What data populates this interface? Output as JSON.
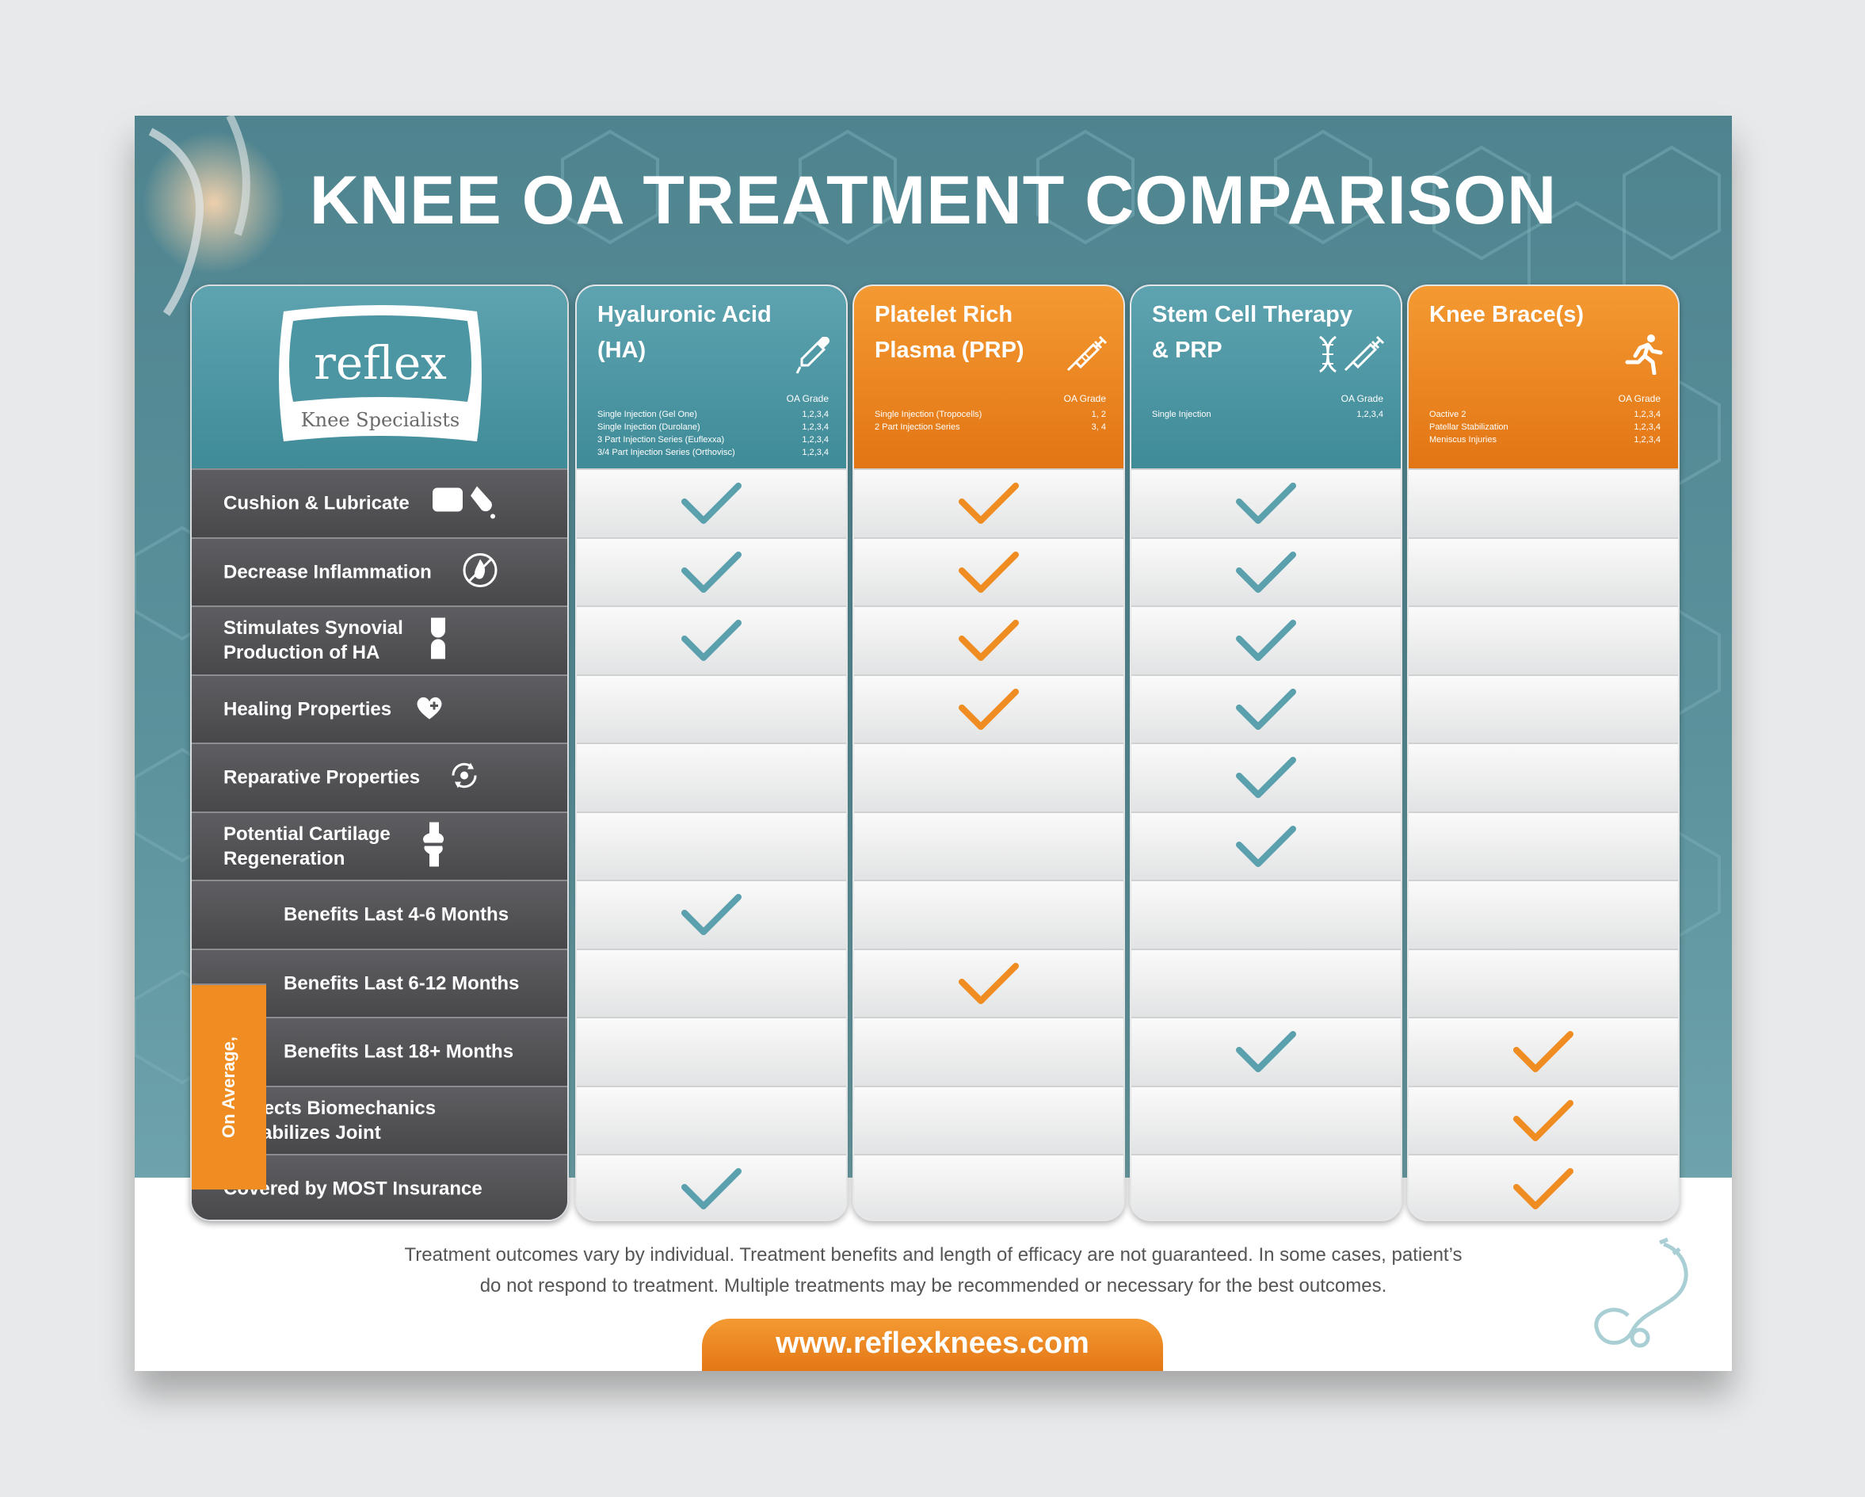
{
  "title": "KNEE OA TREATMENT COMPARISON",
  "logo": {
    "brand": "reflex",
    "tagline": "Knee Specialists"
  },
  "colors": {
    "teal": "#4f9aa8",
    "orange": "#ef8c22",
    "dark": "#505053",
    "check_teal": "#5aa0ad",
    "check_orange": "#ef8c22"
  },
  "features": [
    {
      "label": "Cushion & Lubricate",
      "icon": "pillow-drop-icon"
    },
    {
      "label": "Decrease Inflammation",
      "icon": "no-fire-icon"
    },
    {
      "label": "Stimulates Synovial\nProduction of HA",
      "icon": "joint-icon"
    },
    {
      "label": "Healing Properties",
      "icon": "heart-plus-icon"
    },
    {
      "label": "Reparative Properties",
      "icon": "repair-cycle-icon"
    },
    {
      "label": "Potential Cartilage\nRegeneration",
      "icon": "knee-joint-icon"
    },
    {
      "label": "Benefits Last 4-6 Months",
      "icon": ""
    },
    {
      "label": "Benefits Last 6-12 Months",
      "icon": ""
    },
    {
      "label": "Benefits Last 18+ Months",
      "icon": ""
    },
    {
      "label": "Corrects Biomechanics\n& Stabilizes Joint",
      "icon": ""
    },
    {
      "label": "Covered by MOST Insurance",
      "icon": ""
    }
  ],
  "on_average_label": "On Average,",
  "grade_header": "OA Grade",
  "treatments": [
    {
      "title": "Hyaluronic Acid (HA)",
      "theme": "teal",
      "icon": "dropper-icon",
      "options": [
        {
          "name": "Single Injection (Gel One)",
          "grade": "1,2,3,4"
        },
        {
          "name": "Single Injection (Durolane)",
          "grade": "1,2,3,4"
        },
        {
          "name": "3 Part Injection Series (Euflexxa)",
          "grade": "1,2,3,4"
        },
        {
          "name": "3/4 Part Injection Series (Orthovisc)",
          "grade": "1,2,3,4"
        }
      ],
      "checks": [
        true,
        true,
        true,
        false,
        false,
        false,
        true,
        false,
        false,
        false,
        true
      ]
    },
    {
      "title": "Platelet Rich Plasma (PRP)",
      "theme": "orange",
      "icon": "syringe-icon",
      "options": [
        {
          "name": "Single Injection (Tropocells)",
          "grade": "1, 2"
        },
        {
          "name": "2 Part Injection Series",
          "grade": "3, 4"
        }
      ],
      "checks": [
        true,
        true,
        true,
        true,
        false,
        false,
        false,
        true,
        false,
        false,
        false
      ]
    },
    {
      "title": "Stem Cell Therapy & PRP",
      "theme": "teal",
      "icon": "dna-syringe-icon",
      "options": [
        {
          "name": "Single Injection",
          "grade": "1,2,3,4"
        }
      ],
      "checks": [
        true,
        true,
        true,
        true,
        true,
        true,
        false,
        false,
        true,
        false,
        false
      ]
    },
    {
      "title": "Knee Brace(s)",
      "theme": "orange",
      "icon": "runner-icon",
      "options": [
        {
          "name": "Oactive 2",
          "grade": "1,2,3,4"
        },
        {
          "name": "Patellar Stabilization",
          "grade": "1,2,3,4"
        },
        {
          "name": "Meniscus Injuries",
          "grade": "1,2,3,4"
        }
      ],
      "checks": [
        false,
        false,
        false,
        false,
        false,
        false,
        false,
        false,
        true,
        true,
        true
      ]
    }
  ],
  "disclaimer_line1": "Treatment outcomes vary by individual. Treatment benefits and length of efficacy are not guaranteed. In some cases, patient’s",
  "disclaimer_line2": "do not respond to treatment. Multiple treatments may be recommended or necessary for the best outcomes.",
  "website": "www.reflexknees.com"
}
